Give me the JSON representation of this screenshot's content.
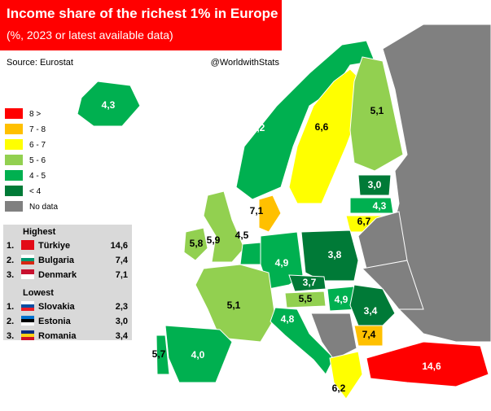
{
  "header": {
    "title": "Income share of the richest 1% in Europe",
    "subtitle": "(%, 2023 or latest available data)",
    "source": "Source: Eurostat",
    "credit": "@WorldwithStats"
  },
  "legend": [
    {
      "label": "8 >",
      "color": "#ff0000"
    },
    {
      "label": "7 - 8",
      "color": "#ffc000"
    },
    {
      "label": "6 - 7",
      "color": "#ffff00"
    },
    {
      "label": "5 - 6",
      "color": "#92d050"
    },
    {
      "label": "4 - 5",
      "color": "#00b050"
    },
    {
      "label": "< 4",
      "color": "#007a37"
    },
    {
      "label": "No data",
      "color": "#808080"
    }
  ],
  "ranking": {
    "highest": {
      "title": "Highest",
      "rows": [
        [
          "1.",
          "Türkiye",
          "14,6"
        ],
        [
          "2.",
          "Bulgaria",
          "7,4"
        ],
        [
          "3.",
          "Denmark",
          "7,1"
        ]
      ]
    },
    "lowest": {
      "title": "Lowest",
      "rows": [
        [
          "1.",
          "Slovakia",
          "2,3"
        ],
        [
          "2.",
          "Estonia",
          "3,0"
        ],
        [
          "3.",
          "Romania",
          "3,4"
        ]
      ]
    }
  },
  "map_labels": [
    "4,3",
    "4,2",
    "6,6",
    "5,1",
    "3,0",
    "4,3",
    "6,7",
    "7,1",
    "4,5",
    "5,8",
    "5,9",
    "4,9",
    "3,8",
    "3,7",
    "5,5",
    "4,9",
    "3,4",
    "5,1",
    "4,8",
    "7,4",
    "5,7",
    "4,0",
    "14,6",
    "6,2"
  ]
}
